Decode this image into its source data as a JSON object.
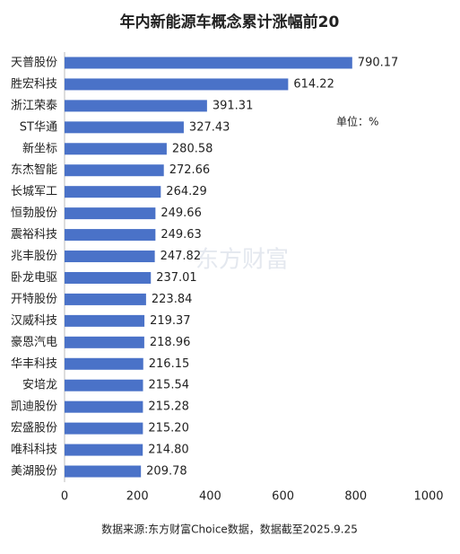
{
  "chart_data": {
    "type": "barh",
    "title": "年内新能源车概念累计涨幅前20",
    "categories": [
      "天普股份",
      "胜宏科技",
      "浙江荣泰",
      "ST华通",
      "新坐标",
      "东杰智能",
      "长城军工",
      "恒勃股份",
      "震裕科技",
      "兆丰股份",
      "卧龙电驱",
      "开特股份",
      "汉威科技",
      "豪恩汽电",
      "华丰科技",
      "安培龙",
      "凯迪股份",
      "宏盛股份",
      "唯科科技",
      "美湖股份"
    ],
    "values": [
      790.17,
      614.22,
      391.31,
      327.43,
      280.58,
      272.66,
      264.29,
      249.66,
      249.63,
      247.82,
      237.01,
      223.84,
      219.37,
      218.96,
      216.15,
      215.54,
      215.28,
      215.2,
      214.8,
      209.78
    ],
    "value_labels": [
      "790.17",
      "614.22",
      "391.31",
      "327.43",
      "280.58",
      "272.66",
      "264.29",
      "249.66",
      "249.63",
      "247.82",
      "237.01",
      "223.84",
      "219.37",
      "218.96",
      "216.15",
      "215.54",
      "215.28",
      "215.20",
      "214.80",
      "209.78"
    ],
    "color": "#4a72c8",
    "xlim": [
      0,
      1000
    ],
    "xticks": [
      0,
      200,
      400,
      600,
      800,
      1000
    ],
    "grid": false,
    "unit_note": "单位：%",
    "watermark": "东方财富",
    "source": "数据来源:东方财富Choice数据，数据截至2025.9.25"
  }
}
